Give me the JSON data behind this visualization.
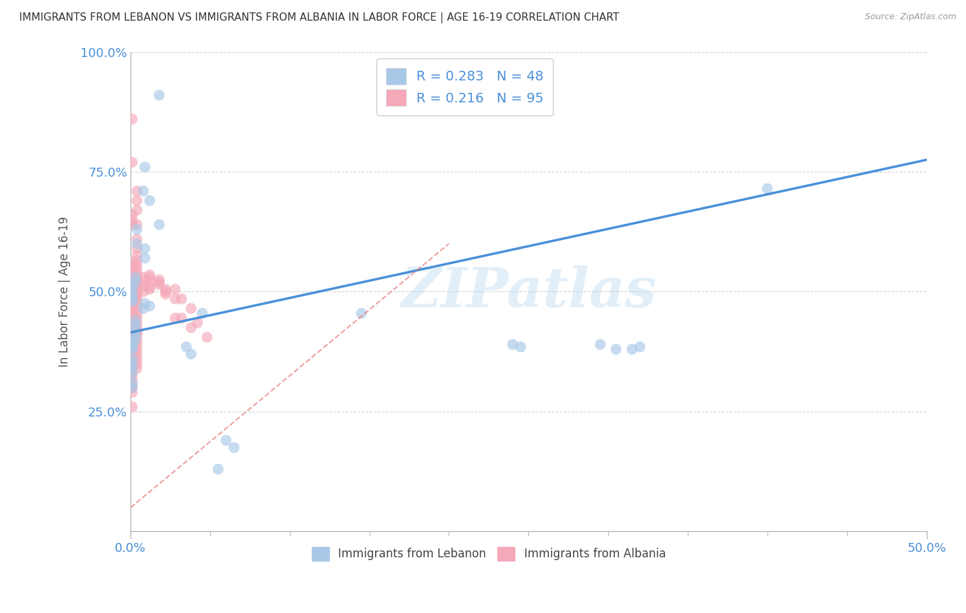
{
  "title": "IMMIGRANTS FROM LEBANON VS IMMIGRANTS FROM ALBANIA IN LABOR FORCE | AGE 16-19 CORRELATION CHART",
  "source": "Source: ZipAtlas.com",
  "ylabel": "In Labor Force | Age 16-19",
  "legend_label1": "Immigrants from Lebanon",
  "legend_label2": "Immigrants from Albania",
  "r_lebanon": 0.283,
  "n_lebanon": 48,
  "r_albania": 0.216,
  "n_albania": 95,
  "xlim": [
    0.0,
    0.5
  ],
  "ylim": [
    0.0,
    1.0
  ],
  "xtick_left_label": "0.0%",
  "xtick_right_label": "50.0%",
  "yticks": [
    0.0,
    0.25,
    0.5,
    0.75,
    1.0
  ],
  "ytick_labels": [
    "",
    "25.0%",
    "50.0%",
    "75.0%",
    "100.0%"
  ],
  "color_lebanon": "#a8c8e8",
  "color_albania": "#f4a8b8",
  "color_line_lebanon": "#4a90d9",
  "color_line_albania": "#e87878",
  "color_axis_text": "#4a90d9",
  "watermark": "ZIPatlas",
  "line_lebanon_x0": 0.0,
  "line_lebanon_y0": 0.415,
  "line_lebanon_x1": 0.5,
  "line_lebanon_y1": 0.775,
  "line_albania_x0": 0.0,
  "line_albania_y0": 0.05,
  "line_albania_x1": 0.2,
  "line_albania_y1": 0.6,
  "lebanon_x": [
    0.018,
    0.009,
    0.008,
    0.012,
    0.018,
    0.004,
    0.004,
    0.009,
    0.009,
    0.003,
    0.003,
    0.001,
    0.001,
    0.001,
    0.001,
    0.001,
    0.009,
    0.012,
    0.008,
    0.045,
    0.003,
    0.003,
    0.003,
    0.003,
    0.003,
    0.001,
    0.001,
    0.001,
    0.001,
    0.001,
    0.001,
    0.001,
    0.001,
    0.001,
    0.001,
    0.145,
    0.305,
    0.295,
    0.315,
    0.32,
    0.038,
    0.035,
    0.24,
    0.245,
    0.4,
    0.055,
    0.06,
    0.065
  ],
  "lebanon_y": [
    0.91,
    0.76,
    0.71,
    0.69,
    0.64,
    0.63,
    0.6,
    0.59,
    0.57,
    0.53,
    0.52,
    0.51,
    0.5,
    0.49,
    0.485,
    0.48,
    0.475,
    0.47,
    0.465,
    0.455,
    0.44,
    0.43,
    0.42,
    0.41,
    0.4,
    0.395,
    0.39,
    0.385,
    0.38,
    0.36,
    0.35,
    0.34,
    0.33,
    0.31,
    0.3,
    0.455,
    0.38,
    0.39,
    0.38,
    0.385,
    0.37,
    0.385,
    0.39,
    0.385,
    0.715,
    0.13,
    0.19,
    0.175
  ],
  "albania_x": [
    0.004,
    0.004,
    0.004,
    0.004,
    0.004,
    0.004,
    0.004,
    0.004,
    0.004,
    0.004,
    0.004,
    0.004,
    0.004,
    0.004,
    0.004,
    0.004,
    0.004,
    0.004,
    0.004,
    0.004,
    0.004,
    0.004,
    0.004,
    0.004,
    0.004,
    0.004,
    0.004,
    0.004,
    0.004,
    0.004,
    0.004,
    0.004,
    0.004,
    0.004,
    0.004,
    0.001,
    0.001,
    0.001,
    0.001,
    0.001,
    0.001,
    0.001,
    0.001,
    0.001,
    0.001,
    0.001,
    0.001,
    0.001,
    0.001,
    0.001,
    0.001,
    0.001,
    0.001,
    0.001,
    0.001,
    0.001,
    0.001,
    0.001,
    0.001,
    0.001,
    0.001,
    0.001,
    0.001,
    0.001,
    0.001,
    0.001,
    0.001,
    0.001,
    0.001,
    0.001,
    0.001,
    0.008,
    0.008,
    0.008,
    0.008,
    0.012,
    0.012,
    0.012,
    0.012,
    0.012,
    0.018,
    0.018,
    0.018,
    0.022,
    0.022,
    0.022,
    0.028,
    0.028,
    0.028,
    0.032,
    0.032,
    0.038,
    0.038,
    0.042,
    0.048
  ],
  "albania_y": [
    0.71,
    0.69,
    0.67,
    0.64,
    0.61,
    0.59,
    0.575,
    0.565,
    0.555,
    0.545,
    0.535,
    0.525,
    0.515,
    0.51,
    0.505,
    0.5,
    0.495,
    0.49,
    0.485,
    0.475,
    0.465,
    0.455,
    0.445,
    0.435,
    0.425,
    0.42,
    0.415,
    0.41,
    0.4,
    0.39,
    0.38,
    0.37,
    0.36,
    0.35,
    0.34,
    0.86,
    0.77,
    0.66,
    0.65,
    0.64,
    0.56,
    0.55,
    0.54,
    0.53,
    0.52,
    0.51,
    0.505,
    0.495,
    0.485,
    0.475,
    0.465,
    0.455,
    0.45,
    0.44,
    0.43,
    0.42,
    0.41,
    0.4,
    0.39,
    0.38,
    0.37,
    0.36,
    0.35,
    0.345,
    0.335,
    0.325,
    0.315,
    0.305,
    0.3,
    0.29,
    0.26,
    0.53,
    0.52,
    0.51,
    0.5,
    0.535,
    0.53,
    0.52,
    0.51,
    0.505,
    0.525,
    0.52,
    0.515,
    0.505,
    0.5,
    0.495,
    0.505,
    0.485,
    0.445,
    0.485,
    0.445,
    0.465,
    0.425,
    0.435,
    0.405
  ]
}
